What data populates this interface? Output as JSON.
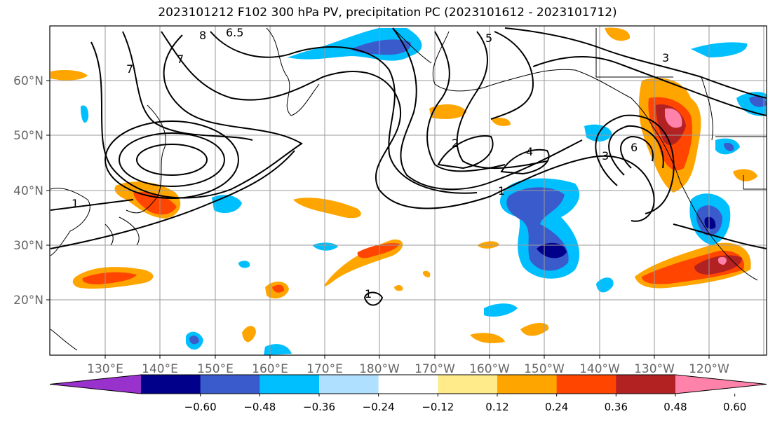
{
  "chart_data": {
    "type": "heatmap",
    "title": "2023101212 F102 300 hPa PV, precipitation PC (2023101612 - 2023101712)",
    "lat_ticks": [
      "60°N",
      "50°N",
      "40°N",
      "30°N",
      "20°N"
    ],
    "lon_ticks": [
      "130°E",
      "140°E",
      "150°E",
      "160°E",
      "170°E",
      "180°W",
      "170°W",
      "160°W",
      "150°W",
      "140°W",
      "130°W",
      "120°W"
    ],
    "colorbar": {
      "levels": [
        -0.72,
        -0.6,
        -0.48,
        -0.36,
        -0.24,
        -0.12,
        0.12,
        0.24,
        0.36,
        0.48,
        0.6,
        0.72
      ],
      "tick_labels": [
        "−0.60",
        "−0.48",
        "−0.36",
        "−0.24",
        "−0.12",
        "0.12",
        "0.24",
        "0.36",
        "0.48",
        "0.60"
      ],
      "colors": [
        "#9932cc",
        "#00008b",
        "#3a5bcc",
        "#00bfff",
        "#b0e0ff",
        "#ffffff",
        "#ffeb8a",
        "#ffa500",
        "#ff4500",
        "#b22222",
        "#ff82ab"
      ],
      "extend": "both"
    },
    "pv_contour_labels": [
      "8",
      "7",
      "6.5",
      "6",
      "5",
      "4",
      "3",
      "2",
      "1"
    ],
    "grid": true
  }
}
